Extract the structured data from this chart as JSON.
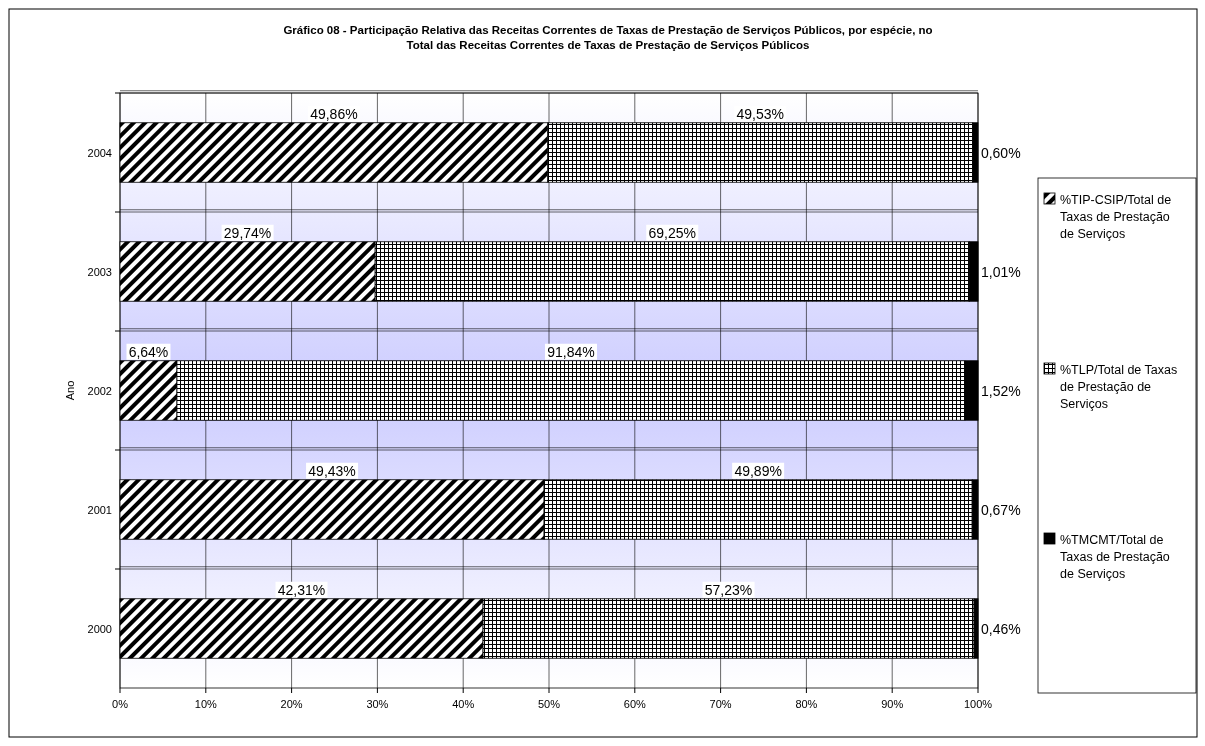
{
  "chart_data": {
    "type": "bar",
    "orientation": "horizontal",
    "stacked": true,
    "title": "Gráfico 08 - Participação Relativa das Receitas Correntes de Taxas de Prestação de Serviços Públicos, por espécie,  no Total das Receitas Correntes de Taxas de Prestação de Serviços Públicos",
    "ylabel": "Ano",
    "categories": [
      "2004",
      "2003",
      "2002",
      "2001",
      "2000"
    ],
    "series": [
      {
        "name": "%TIP-CSIP/Total de Taxas de Prestação de Serviços",
        "color": "#000000",
        "values": [
          49.86,
          29.74,
          6.64,
          49.43,
          42.31
        ],
        "value_labels": [
          "49,86%",
          "29,74%",
          "6,64%",
          "49,43%",
          "42,31%"
        ]
      },
      {
        "name": "%TLP/Total de Taxas de Prestação de Serviços",
        "color": "#000000",
        "values": [
          49.53,
          69.25,
          91.84,
          49.89,
          57.23
        ],
        "value_labels": [
          "49,53%",
          "69,25%",
          "91,84%",
          "49,89%",
          "57,23%"
        ]
      },
      {
        "name": "%TMCMT/Total de Taxas de Prestação de Serviços",
        "color": "#000000",
        "values": [
          0.6,
          1.01,
          1.52,
          0.67,
          0.46
        ],
        "value_labels": [
          "0,60%",
          "1,01%",
          "1,52%",
          "0,67%",
          "0,46%"
        ]
      }
    ],
    "xlim": [
      0,
      100
    ],
    "xticks": [
      {
        "value": 0,
        "label": "0%"
      },
      {
        "value": 10,
        "label": "10%"
      },
      {
        "value": 20,
        "label": "20%"
      },
      {
        "value": 30,
        "label": "30%"
      },
      {
        "value": 40,
        "label": "40%"
      },
      {
        "value": 50,
        "label": "50%"
      },
      {
        "value": 60,
        "label": "60%"
      },
      {
        "value": 70,
        "label": "70%"
      },
      {
        "value": 80,
        "label": "80%"
      },
      {
        "value": 90,
        "label": "90%"
      },
      {
        "value": 100,
        "label": "100%"
      }
    ],
    "grid": true,
    "legend": "right"
  }
}
